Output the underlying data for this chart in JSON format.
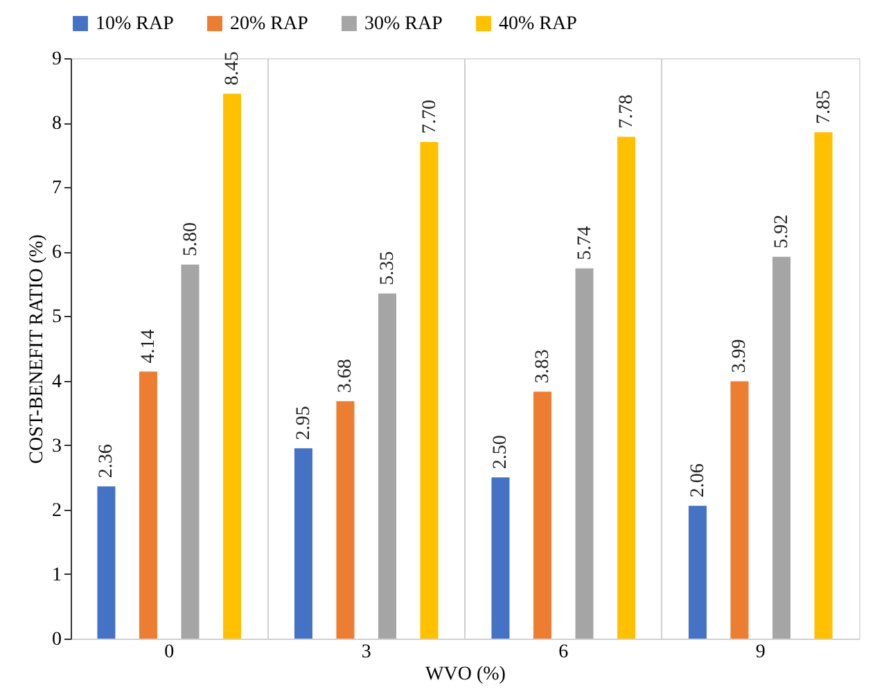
{
  "chart_data": {
    "type": "bar",
    "xlabel": "WVO (%)",
    "ylabel": "COST-BENEFIT RATIO (%)",
    "categories": [
      "0",
      "3",
      "6",
      "9"
    ],
    "series": [
      {
        "name": "10% RAP",
        "color": "#4472c4",
        "values": [
          2.36,
          2.95,
          2.5,
          2.06
        ],
        "value_labels": [
          "2.36",
          "2.95",
          "2.50",
          "2.06"
        ]
      },
      {
        "name": "20% RAP",
        "color": "#ed7d31",
        "values": [
          4.14,
          3.68,
          3.83,
          3.99
        ],
        "value_labels": [
          "4.14",
          "3.68",
          "3.83",
          "3.99"
        ]
      },
      {
        "name": "30% RAP",
        "color": "#a5a5a5",
        "values": [
          5.8,
          5.35,
          5.74,
          5.92
        ],
        "value_labels": [
          "5.80",
          "5.35",
          "5.74",
          "5.92"
        ]
      },
      {
        "name": "40% RAP",
        "color": "#ffc000",
        "values": [
          8.45,
          7.7,
          7.78,
          7.85
        ],
        "value_labels": [
          "8.45",
          "7.70",
          "7.78",
          "7.85"
        ]
      }
    ],
    "ylim": [
      0,
      9
    ],
    "yticks": [
      0,
      1,
      2,
      3,
      4,
      5,
      6,
      7,
      8,
      9
    ],
    "grid": "x",
    "legend": "top"
  }
}
